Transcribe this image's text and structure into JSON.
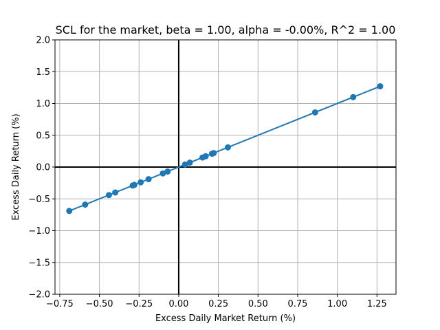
{
  "chart_data": {
    "type": "scatter",
    "title": "SCL for the market, beta = 1.00, alpha = -0.00%, R^2 = 1.00",
    "xlabel": "Excess Daily Market Return (%)",
    "ylabel": "Excess Daily Return (%)",
    "xlim": [
      -0.78,
      1.37
    ],
    "ylim": [
      -2.0,
      2.0
    ],
    "xticks": [
      -0.75,
      -0.5,
      -0.25,
      0.0,
      0.25,
      0.5,
      0.75,
      1.0,
      1.25
    ],
    "xtick_labels": [
      "−0.75",
      "−0.50",
      "−0.25",
      "0.00",
      "0.25",
      "0.50",
      "0.75",
      "1.00",
      "1.25"
    ],
    "yticks": [
      -2.0,
      -1.5,
      -1.0,
      -0.5,
      0.0,
      0.5,
      1.0,
      1.5,
      2.0
    ],
    "ytick_labels": [
      "−2.0",
      "−1.5",
      "−1.0",
      "−0.5",
      "0.0",
      "0.5",
      "1.0",
      "1.5",
      "2.0"
    ],
    "grid": true,
    "reference_lines": {
      "x": 0,
      "y": 0
    },
    "series": [
      {
        "color": "#1f77b4",
        "points": [
          {
            "x": -0.69,
            "y": -0.69
          },
          {
            "x": -0.59,
            "y": -0.59
          },
          {
            "x": -0.44,
            "y": -0.44
          },
          {
            "x": -0.4,
            "y": -0.4
          },
          {
            "x": -0.29,
            "y": -0.29
          },
          {
            "x": -0.28,
            "y": -0.28
          },
          {
            "x": -0.24,
            "y": -0.24
          },
          {
            "x": -0.19,
            "y": -0.19
          },
          {
            "x": -0.1,
            "y": -0.1
          },
          {
            "x": -0.07,
            "y": -0.07
          },
          {
            "x": 0.04,
            "y": 0.04
          },
          {
            "x": 0.07,
            "y": 0.07
          },
          {
            "x": 0.15,
            "y": 0.15
          },
          {
            "x": 0.17,
            "y": 0.17
          },
          {
            "x": 0.21,
            "y": 0.21
          },
          {
            "x": 0.22,
            "y": 0.22
          },
          {
            "x": 0.31,
            "y": 0.31
          },
          {
            "x": 0.86,
            "y": 0.86
          },
          {
            "x": 1.1,
            "y": 1.1
          },
          {
            "x": 1.27,
            "y": 1.27
          }
        ]
      }
    ],
    "fit_line": {
      "beta": 1.0,
      "alpha": 0.0
    }
  }
}
